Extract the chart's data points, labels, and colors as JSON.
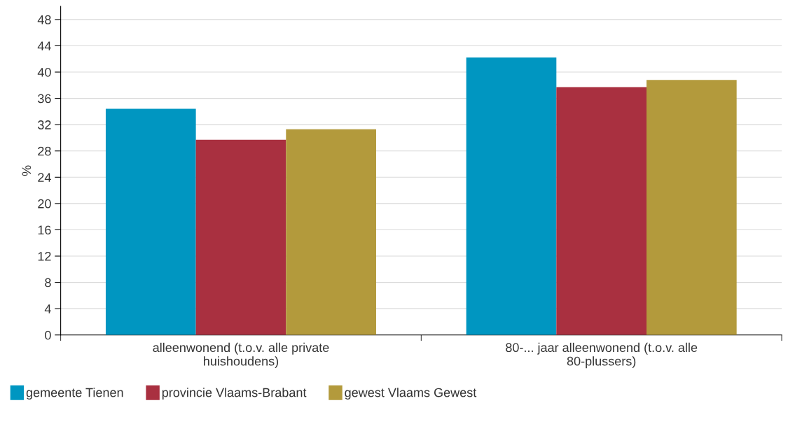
{
  "chart_data": {
    "type": "bar",
    "ylabel": "%",
    "categories": [
      "alleenwonend (t.o.v. alle private\nhuishoudens)",
      "80-... jaar alleenwonend (t.o.v. alle\n80-plussers)"
    ],
    "series": [
      {
        "name": "gemeente Tienen",
        "color": "#0096c1",
        "values": [
          34.4,
          42.2
        ]
      },
      {
        "name": "provincie Vlaams-Brabant",
        "color": "#a93040",
        "values": [
          29.7,
          37.7
        ]
      },
      {
        "name": "gewest Vlaams Gewest",
        "color": "#b39a3c",
        "values": [
          31.3,
          38.8
        ]
      }
    ],
    "ylim": [
      0,
      50
    ],
    "yticks": [
      0,
      4,
      8,
      12,
      16,
      20,
      24,
      28,
      32,
      36,
      40,
      44,
      48
    ],
    "grid": "y",
    "legend": "bottom left"
  }
}
